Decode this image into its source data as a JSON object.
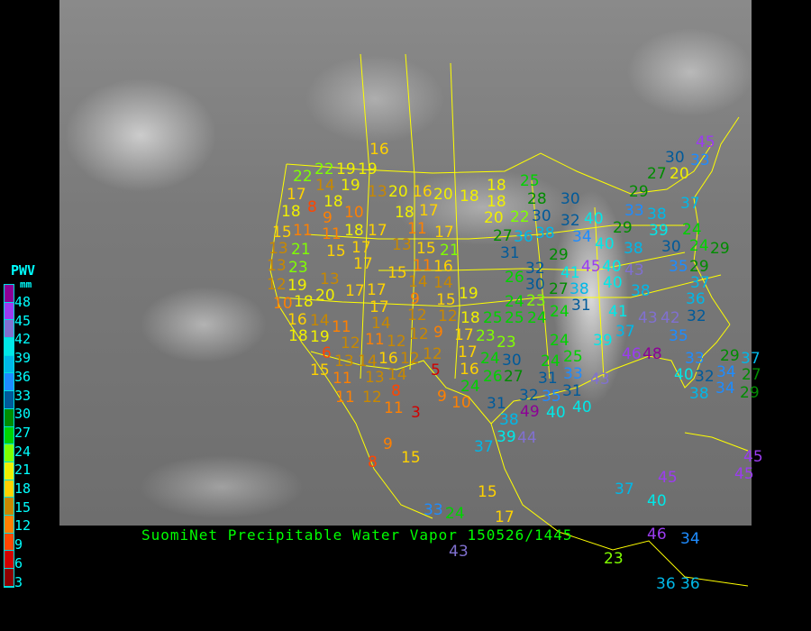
{
  "title": "SuomiNet Precipitable Water Vapor 150526/1445",
  "legend": {
    "title": "PWV",
    "unit": "mm",
    "ticks": [
      "48",
      "45",
      "42",
      "39",
      "36",
      "33",
      "30",
      "27",
      "24",
      "21",
      "18",
      "15",
      "12",
      "9",
      "6",
      "3"
    ],
    "band_colors": [
      "#8c0096",
      "#9b3cf0",
      "#8070d0",
      "#00e8e8",
      "#00b8e8",
      "#1e8cff",
      "#005a9a",
      "#008c00",
      "#00d200",
      "#80ff00",
      "#f0f000",
      "#ffd200",
      "#c88800",
      "#ff8000",
      "#ff4600",
      "#d20000",
      "#8c0000"
    ]
  },
  "colors": {
    "borders": "#ffff00",
    "title": "#00ff00",
    "legend_text": "#00ffff"
  },
  "stations": [
    16,
    22,
    22,
    19,
    19,
    14,
    19,
    17,
    18,
    13,
    20,
    16,
    20,
    18,
    18,
    18,
    18,
    8,
    9,
    10,
    18,
    11,
    17,
    11,
    18,
    17,
    13,
    15,
    11,
    17,
    13,
    21,
    15,
    17,
    15,
    21,
    11,
    16,
    13,
    23,
    19,
    17,
    14,
    15,
    14,
    15,
    12,
    18,
    10,
    20,
    13,
    17,
    17,
    9,
    12,
    19,
    16,
    18,
    17,
    14,
    12,
    9,
    14,
    11,
    12,
    11,
    12,
    12,
    19,
    6,
    13,
    14,
    16,
    12,
    12,
    15,
    11,
    13,
    14,
    5,
    8,
    11,
    12,
    11,
    9,
    3,
    9,
    8,
    15,
    15,
    33,
    24,
    43,
    17,
    18,
    25,
    25,
    17,
    23,
    23,
    17,
    24,
    16,
    26,
    24,
    10,
    27,
    24,
    24,
    24,
    24,
    24,
    25,
    30,
    31,
    33,
    31,
    35,
    32,
    40,
    40,
    31,
    38,
    49,
    39,
    44,
    37,
    39,
    43,
    41,
    37,
    43,
    42,
    46,
    48,
    35,
    33,
    32,
    40,
    34,
    38,
    34,
    29,
    37,
    38,
    35,
    29,
    37,
    36,
    32,
    45,
    40,
    43,
    40,
    41,
    38,
    32,
    29,
    26,
    30,
    27,
    23,
    31,
    30,
    32,
    34,
    40,
    28,
    25,
    22,
    30,
    38,
    36,
    20,
    27,
    31,
    29,
    40,
    38,
    33,
    38,
    39,
    30,
    24,
    24,
    29,
    29,
    27,
    20,
    37,
    30,
    33,
    45,
    37,
    45,
    40,
    46,
    34,
    23,
    36,
    36,
    45,
    45,
    27,
    29
  ]
}
